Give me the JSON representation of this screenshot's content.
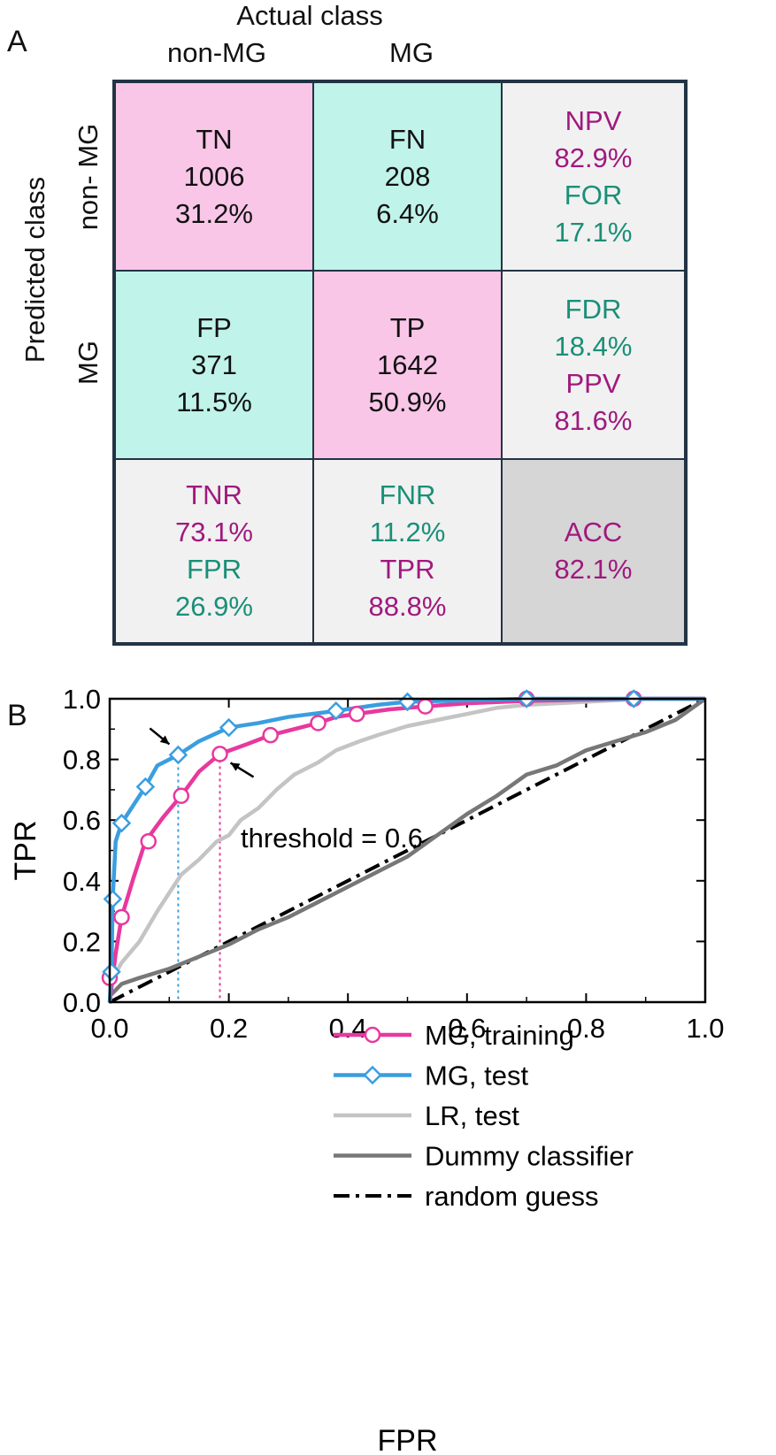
{
  "panel_a": {
    "letter": "A",
    "actual_class_label": "Actual class",
    "predicted_class_label": "Predicted class",
    "col_headers": [
      "non-MG",
      "MG"
    ],
    "row_headers": [
      "non- MG",
      "MG"
    ],
    "cells": {
      "tn": {
        "name": "TN",
        "count": "1006",
        "pct": "31.2%"
      },
      "fn": {
        "name": "FN",
        "count": "208",
        "pct": "6.4%"
      },
      "fp": {
        "name": "FP",
        "count": "371",
        "pct": "11.5%"
      },
      "tp": {
        "name": "TP",
        "count": "1642",
        "pct": "50.9%"
      }
    },
    "row_metrics": [
      {
        "a_label": "NPV",
        "a_value": "82.9%",
        "b_label": "FOR",
        "b_value": "17.1%"
      },
      {
        "a_label": "FDR",
        "a_value": "18.4%",
        "b_label": "PPV",
        "b_value": "81.6%"
      }
    ],
    "col_metrics": [
      {
        "a_label": "TNR",
        "a_value": "73.1%",
        "b_label": "FPR",
        "b_value": "26.9%"
      },
      {
        "a_label": "FNR",
        "a_value": "11.2%",
        "b_label": "TPR",
        "b_value": "88.8%"
      }
    ],
    "acc": {
      "label": "ACC",
      "value": "82.1%"
    },
    "colors": {
      "pink": "#f9c6e8",
      "teal": "#c0f3ea",
      "light": "#f1f1f1",
      "dark": "#d6d6d6",
      "magenta_text": "#a0197e",
      "green_text": "#1a8f78"
    }
  },
  "panel_b": {
    "letter": "B"
  },
  "chart_data": {
    "type": "line",
    "xlabel": "FPR",
    "ylabel": "TPR",
    "xlim": [
      0,
      1
    ],
    "ylim": [
      0,
      1
    ],
    "xticks": [
      "0.0",
      "0.2",
      "0.4",
      "0.6",
      "0.8",
      "1.0"
    ],
    "yticks": [
      "0.0",
      "0.2",
      "0.4",
      "0.6",
      "0.8",
      "1.0"
    ],
    "legend_position": "bottom-right",
    "annotation": "threshold = 0.6",
    "series": [
      {
        "name": "MG, training",
        "color": "#e8389e",
        "marker": "circle",
        "x": [
          0,
          0.005,
          0.01,
          0.02,
          0.04,
          0.06,
          0.09,
          0.12,
          0.15,
          0.185,
          0.23,
          0.27,
          0.31,
          0.35,
          0.38,
          0.415,
          0.47,
          0.53,
          0.6,
          0.7,
          0.8,
          0.88,
          1.0
        ],
        "y": [
          0,
          0.08,
          0.16,
          0.28,
          0.41,
          0.53,
          0.61,
          0.68,
          0.76,
          0.818,
          0.85,
          0.88,
          0.9,
          0.92,
          0.94,
          0.95,
          0.965,
          0.975,
          0.985,
          0.993,
          0.997,
          1.0,
          1.0
        ],
        "marker_x": [
          0.0,
          0.02,
          0.065,
          0.12,
          0.185,
          0.27,
          0.35,
          0.415,
          0.53,
          0.7,
          0.88
        ],
        "marker_y": [
          0.08,
          0.28,
          0.53,
          0.68,
          0.818,
          0.88,
          0.92,
          0.95,
          0.975,
          1.0,
          1.0
        ]
      },
      {
        "name": "MG, test",
        "color": "#3a9ee0",
        "marker": "diamond",
        "x": [
          0,
          0.003,
          0.005,
          0.01,
          0.02,
          0.04,
          0.06,
          0.08,
          0.115,
          0.15,
          0.2,
          0.25,
          0.3,
          0.38,
          0.45,
          0.5,
          0.6,
          0.7,
          1.0
        ],
        "y": [
          0,
          0.1,
          0.34,
          0.53,
          0.59,
          0.65,
          0.71,
          0.78,
          0.815,
          0.86,
          0.905,
          0.92,
          0.94,
          0.96,
          0.98,
          0.99,
          0.995,
          1.0,
          1.0
        ],
        "marker_x": [
          0.003,
          0.005,
          0.02,
          0.06,
          0.115,
          0.2,
          0.38,
          0.5,
          0.7,
          0.88
        ],
        "marker_y": [
          0.1,
          0.34,
          0.59,
          0.71,
          0.815,
          0.905,
          0.96,
          0.99,
          1.0,
          1.0
        ]
      },
      {
        "name": "LR, test",
        "color": "#c4c4c4",
        "marker": "none",
        "x": [
          0,
          0.02,
          0.05,
          0.08,
          0.1,
          0.12,
          0.15,
          0.18,
          0.2,
          0.22,
          0.25,
          0.28,
          0.31,
          0.35,
          0.38,
          0.42,
          0.45,
          0.5,
          0.55,
          0.6,
          0.65,
          0.7,
          0.8,
          0.9,
          1.0
        ],
        "y": [
          0.06,
          0.13,
          0.2,
          0.3,
          0.36,
          0.42,
          0.47,
          0.53,
          0.55,
          0.6,
          0.64,
          0.7,
          0.75,
          0.79,
          0.83,
          0.86,
          0.88,
          0.91,
          0.93,
          0.95,
          0.97,
          0.98,
          0.99,
          1.0,
          1.0
        ]
      },
      {
        "name": "Dummy classifier",
        "color": "#777777",
        "marker": "none",
        "x": [
          0,
          0.02,
          0.05,
          0.1,
          0.15,
          0.2,
          0.25,
          0.3,
          0.35,
          0.4,
          0.45,
          0.5,
          0.55,
          0.6,
          0.65,
          0.7,
          0.75,
          0.8,
          0.85,
          0.9,
          0.95,
          1.0
        ],
        "y": [
          0.02,
          0.06,
          0.08,
          0.11,
          0.15,
          0.19,
          0.24,
          0.28,
          0.33,
          0.38,
          0.43,
          0.48,
          0.55,
          0.62,
          0.68,
          0.75,
          0.78,
          0.83,
          0.86,
          0.89,
          0.93,
          1.0
        ]
      },
      {
        "name": "random guess",
        "color": "#000000",
        "marker": "none",
        "dash": "dashdot",
        "x": [
          0,
          1
        ],
        "y": [
          0,
          1
        ]
      }
    ],
    "threshold_points": [
      {
        "series": "MG, test",
        "x": 0.115,
        "y": 0.815,
        "color": "#3a9ee0"
      },
      {
        "series": "MG, training",
        "x": 0.185,
        "y": 0.818,
        "color": "#e8389e"
      }
    ]
  }
}
